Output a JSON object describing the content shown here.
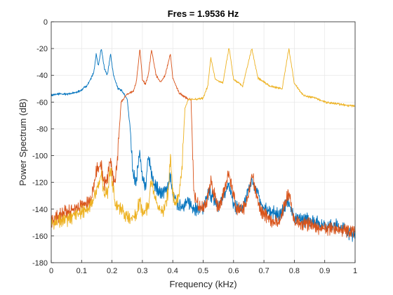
{
  "chart_data": {
    "type": "line",
    "title": "Fres = 1.9536 Hz",
    "xlabel": "Frequency (kHz)",
    "ylabel": "Power Spectrum (dB)",
    "xlim": [
      0,
      1
    ],
    "ylim": [
      -180,
      0
    ],
    "xticks": [
      0,
      0.1,
      0.2,
      0.3,
      0.4,
      0.5,
      0.6,
      0.7,
      0.8,
      0.9,
      1
    ],
    "xtick_labels": [
      "0",
      "0.1",
      "0.2",
      "0.3",
      "0.4",
      "0.5",
      "0.6",
      "0.7",
      "0.8",
      "0.9",
      "1"
    ],
    "yticks": [
      0,
      -20,
      -40,
      -60,
      -80,
      -100,
      -120,
      -140,
      -160,
      -180
    ],
    "ytick_labels": [
      "0",
      "-20",
      "-40",
      "-60",
      "-80",
      "-100",
      "-120",
      "-140",
      "-160",
      "-180"
    ],
    "grid": true,
    "colors": [
      "#0072BD",
      "#D95319",
      "#EDB120"
    ],
    "series": [
      {
        "color": "#0072BD",
        "x": [
          0,
          0.02,
          0.05,
          0.08,
          0.1,
          0.12,
          0.14,
          0.148,
          0.155,
          0.165,
          0.175,
          0.185,
          0.195,
          0.205,
          0.22,
          0.235,
          0.25,
          0.26,
          0.27,
          0.28,
          0.292,
          0.3,
          0.31,
          0.32,
          0.33,
          0.34,
          0.36,
          0.38,
          0.392,
          0.4,
          0.42,
          0.45,
          0.48,
          0.5,
          0.52,
          0.55,
          0.585,
          0.6,
          0.63,
          0.66,
          0.7,
          0.75,
          0.782,
          0.8,
          0.85,
          0.9,
          0.95,
          1.0
        ],
        "y": [
          -55,
          -54,
          -54,
          -53,
          -51,
          -47,
          -38,
          -24,
          -33,
          -20,
          -35,
          -40,
          -24,
          -40,
          -50,
          -52,
          -58,
          -80,
          -115,
          -118,
          -98,
          -118,
          -125,
          -100,
          -115,
          -122,
          -128,
          -126,
          -115,
          -130,
          -138,
          -135,
          -140,
          -140,
          -127,
          -138,
          -120,
          -138,
          -140,
          -118,
          -140,
          -145,
          -133,
          -148,
          -148,
          -152,
          -153,
          -160
        ]
      },
      {
        "color": "#D95319",
        "x": [
          0,
          0.05,
          0.1,
          0.13,
          0.15,
          0.165,
          0.175,
          0.185,
          0.195,
          0.205,
          0.212,
          0.22,
          0.23,
          0.25,
          0.27,
          0.28,
          0.292,
          0.3,
          0.31,
          0.32,
          0.33,
          0.345,
          0.36,
          0.375,
          0.392,
          0.4,
          0.42,
          0.44,
          0.45,
          0.46,
          0.47,
          0.49,
          0.51,
          0.525,
          0.55,
          0.585,
          0.61,
          0.64,
          0.66,
          0.69,
          0.72,
          0.75,
          0.782,
          0.8,
          0.85,
          0.9,
          0.95,
          1.0
        ],
        "y": [
          -148,
          -142,
          -138,
          -134,
          -110,
          -108,
          -122,
          -118,
          -103,
          -118,
          -116,
          -95,
          -60,
          -54,
          -52,
          -45,
          -20,
          -43,
          -47,
          -39,
          -21,
          -40,
          -45,
          -40,
          -24,
          -42,
          -53,
          -56,
          -58,
          -58,
          -130,
          -139,
          -137,
          -120,
          -141,
          -112,
          -140,
          -139,
          -114,
          -142,
          -148,
          -150,
          -128,
          -150,
          -152,
          -155,
          -155,
          -157
        ]
      },
      {
        "color": "#EDB120",
        "x": [
          0,
          0.05,
          0.1,
          0.13,
          0.15,
          0.165,
          0.175,
          0.185,
          0.195,
          0.21,
          0.23,
          0.25,
          0.28,
          0.292,
          0.3,
          0.32,
          0.33,
          0.35,
          0.37,
          0.385,
          0.392,
          0.4,
          0.41,
          0.42,
          0.43,
          0.44,
          0.45,
          0.47,
          0.5,
          0.515,
          0.525,
          0.54,
          0.565,
          0.585,
          0.6,
          0.63,
          0.66,
          0.68,
          0.72,
          0.76,
          0.782,
          0.8,
          0.83,
          0.87,
          0.9,
          0.93,
          0.96,
          1.0
        ],
        "y": [
          -150,
          -148,
          -142,
          -138,
          -125,
          -115,
          -130,
          -128,
          -108,
          -135,
          -140,
          -146,
          -145,
          -132,
          -145,
          -138,
          -118,
          -140,
          -140,
          -128,
          -100,
          -128,
          -135,
          -130,
          -110,
          -65,
          -58,
          -58,
          -57,
          -48,
          -27,
          -43,
          -46,
          -19,
          -43,
          -48,
          -20,
          -42,
          -48,
          -50,
          -20,
          -46,
          -55,
          -57,
          -60,
          -61,
          -62,
          -63
        ]
      }
    ]
  }
}
